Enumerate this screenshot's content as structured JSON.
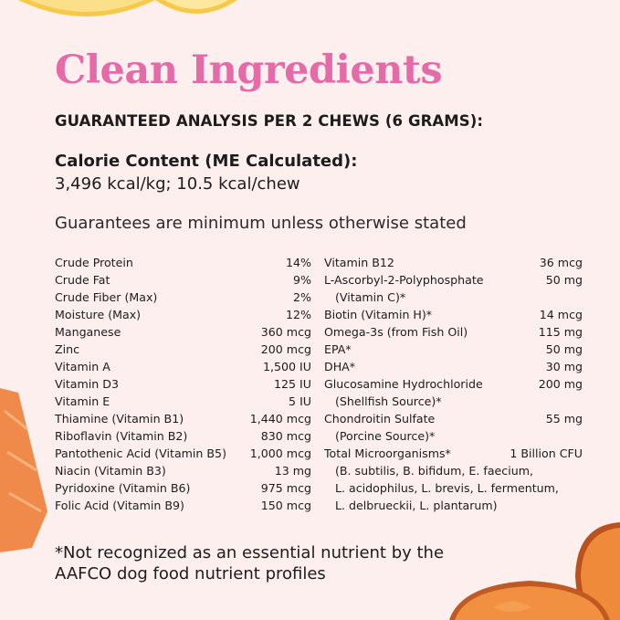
{
  "title": "Clean Ingredients",
  "heading": "GUARANTEED ANALYSIS PER 2 CHEWS (6 GRAMS):",
  "calorie": {
    "label": "Calorie Content (ME Calculated):",
    "value": "3,496 kcal/kg; 10.5 kcal/chew"
  },
  "guarantees_note": "Guarantees are minimum unless otherwise stated",
  "left_column": [
    {
      "name": "Crude Protein",
      "value": "14%"
    },
    {
      "name": "Crude Fat",
      "value": "9%"
    },
    {
      "name": "Crude Fiber (Max)",
      "value": "2%"
    },
    {
      "name": "Moisture (Max)",
      "value": "12%"
    },
    {
      "name": "Manganese",
      "value": "360 mcg"
    },
    {
      "name": "Zinc",
      "value": "200 mcg"
    },
    {
      "name": "Vitamin A",
      "value": "1,500 IU"
    },
    {
      "name": "Vitamin D3",
      "value": "125 IU"
    },
    {
      "name": "Vitamin E",
      "value": "5 IU"
    },
    {
      "name": "Thiamine (Vitamin B1)",
      "value": "1,440 mcg"
    },
    {
      "name": "Riboflavin (Vitamin B2)",
      "value": "830 mcg"
    },
    {
      "name": "Pantothenic Acid (Vitamin B5)",
      "value": "1,000 mcg"
    },
    {
      "name": "Niacin (Vitamin B3)",
      "value": "13 mg"
    },
    {
      "name": "Pyridoxine (Vitamin B6)",
      "value": "975 mcg"
    },
    {
      "name": "Folic Acid (Vitamin B9)",
      "value": "150 mcg"
    }
  ],
  "right_column": [
    {
      "name": "Vitamin B12",
      "value": "36 mcg",
      "sub": []
    },
    {
      "name": "L-Ascorbyl-2-Polyphosphate",
      "value": "50 mg",
      "sub": [
        "(Vitamin C)*"
      ]
    },
    {
      "name": "Biotin (Vitamin H)*",
      "value": "14 mcg",
      "sub": []
    },
    {
      "name": "Omega-3s (from Fish Oil)",
      "value": "115 mg",
      "sub": []
    },
    {
      "name": "EPA*",
      "value": "50 mg",
      "sub": []
    },
    {
      "name": "DHA*",
      "value": "30 mg",
      "sub": []
    },
    {
      "name": "Glucosamine Hydrochloride",
      "value": "200 mg",
      "sub": [
        "(Shellfish Source)*"
      ]
    },
    {
      "name": "Chondroitin Sulfate",
      "value": "55 mg",
      "sub": [
        "(Porcine Source)*"
      ]
    },
    {
      "name": "Total Microorganisms*",
      "value": "1 Billion CFU",
      "sub": [
        "(B. subtilis, B. bifidum, E. faecium,",
        "L. acidophilus, L. brevis, L. fermentum,",
        "L. delbrueckii, L. plantarum)"
      ]
    }
  ],
  "footnote": [
    "*Not recognized as an essential nutrient by the",
    "AAFCO dog food nutrient profiles"
  ],
  "colors": {
    "background": "#fcefed",
    "title": "#e56aa8",
    "lemon": "#f7c744",
    "salmon": "#f08a4b",
    "sweet_potato": "#e8772e"
  }
}
